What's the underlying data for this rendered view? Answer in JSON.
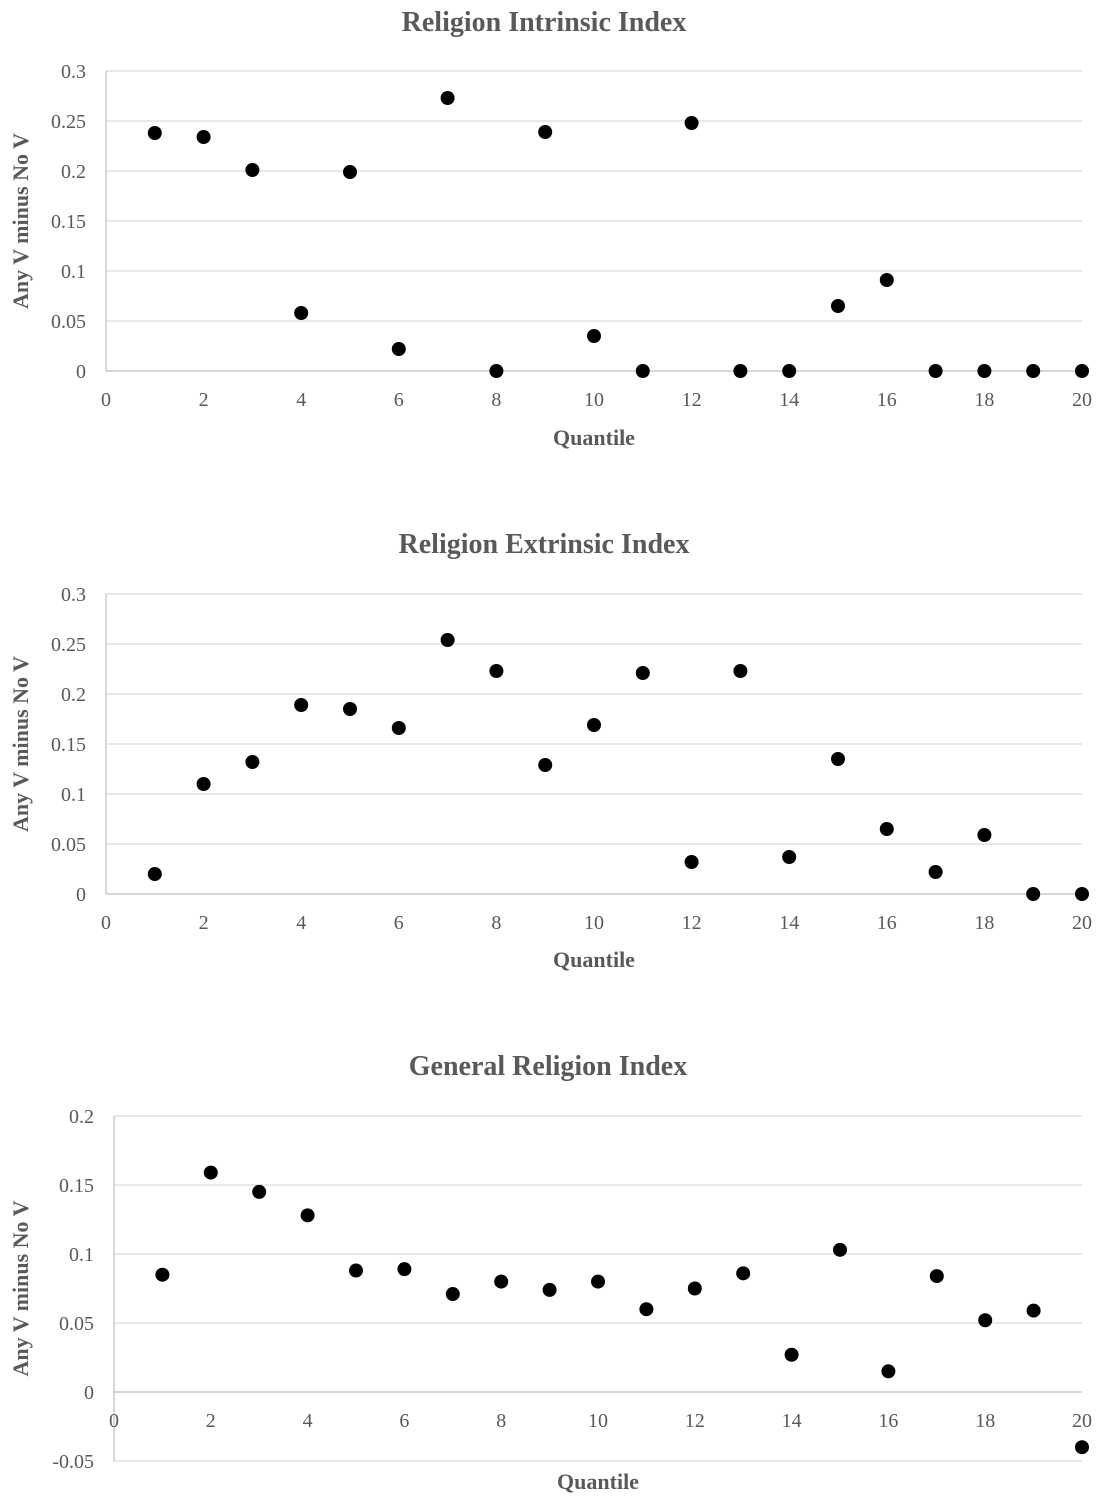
{
  "chart_data": [
    {
      "type": "scatter",
      "title": "Religion Intrinsic Index",
      "xlabel": "Quantile",
      "ylabel": "Any V minus No V",
      "xlim": [
        0,
        20
      ],
      "ylim": [
        0,
        0.3
      ],
      "x_ticks": [
        "0",
        "2",
        "4",
        "6",
        "8",
        "10",
        "12",
        "14",
        "16",
        "18",
        "20"
      ],
      "y_ticks": [
        "0",
        "0.05",
        "0.1",
        "0.15",
        "0.2",
        "0.25",
        "0.3"
      ],
      "grid": true,
      "legend": "none",
      "marker_color": "#000000",
      "x": [
        1,
        2,
        3,
        4,
        5,
        6,
        7,
        8,
        9,
        10,
        11,
        12,
        13,
        14,
        15,
        16,
        17,
        18,
        19,
        20
      ],
      "y": [
        0.238,
        0.234,
        0.201,
        0.058,
        0.199,
        0.022,
        0.273,
        0.0,
        0.239,
        0.035,
        0.0,
        0.248,
        0.0,
        0.0,
        0.065,
        0.091,
        0.0,
        0.0,
        0.0,
        0.0
      ]
    },
    {
      "type": "scatter",
      "title": "Religion Extrinsic Index",
      "xlabel": "Quantile",
      "ylabel": "Any V minus No V",
      "xlim": [
        0,
        20
      ],
      "ylim": [
        0,
        0.3
      ],
      "x_ticks": [
        "0",
        "2",
        "4",
        "6",
        "8",
        "10",
        "12",
        "14",
        "16",
        "18",
        "20"
      ],
      "y_ticks": [
        "0",
        "0.05",
        "0.1",
        "0.15",
        "0.2",
        "0.25",
        "0.3"
      ],
      "grid": true,
      "legend": "none",
      "marker_color": "#000000",
      "x": [
        1,
        2,
        3,
        4,
        5,
        6,
        7,
        8,
        9,
        10,
        11,
        12,
        13,
        14,
        15,
        16,
        17,
        18,
        19,
        20
      ],
      "y": [
        0.02,
        0.11,
        0.132,
        0.189,
        0.185,
        0.166,
        0.254,
        0.223,
        0.129,
        0.169,
        0.221,
        0.032,
        0.223,
        0.037,
        0.135,
        0.065,
        0.022,
        0.059,
        0.0,
        0.0
      ]
    },
    {
      "type": "scatter",
      "title": "General Religion Index",
      "xlabel": "Quantile",
      "ylabel": "Any V minus No V",
      "xlim": [
        0,
        20
      ],
      "ylim": [
        -0.05,
        0.2
      ],
      "x_ticks": [
        "0",
        "2",
        "4",
        "6",
        "8",
        "10",
        "12",
        "14",
        "16",
        "18",
        "20"
      ],
      "y_ticks": [
        "-0.05",
        "0",
        "0.05",
        "0.1",
        "0.15",
        "0.2"
      ],
      "grid": true,
      "legend": "none",
      "marker_color": "#000000",
      "x": [
        1,
        2,
        3,
        4,
        5,
        6,
        7,
        8,
        9,
        10,
        11,
        12,
        13,
        14,
        15,
        16,
        17,
        18,
        19,
        20
      ],
      "y": [
        0.085,
        0.159,
        0.145,
        0.128,
        0.088,
        0.089,
        0.071,
        0.08,
        0.074,
        0.08,
        0.06,
        0.075,
        0.086,
        0.027,
        0.103,
        0.015,
        0.084,
        0.052,
        0.059,
        -0.04
      ]
    }
  ]
}
